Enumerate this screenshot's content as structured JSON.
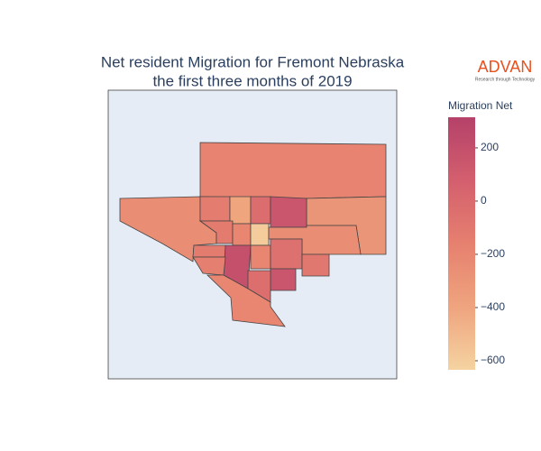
{
  "chart_data": {
    "type": "choropleth",
    "title": [
      "Net resident Migration for Fremont Nebraska",
      "the first three months of 2019"
    ],
    "colorbar_title": "Migration Net",
    "values": [
      -180,
      -250,
      -300,
      -130,
      -400,
      -20,
      150,
      -120,
      -200,
      -600,
      -250,
      -120,
      200,
      -200,
      -50,
      -100,
      -150,
      150,
      -30,
      -200
    ],
    "clim": [
      -634,
      315
    ],
    "cticks": [
      200,
      0,
      {
        "value": -200,
        "label": "−200"
      },
      {
        "value": -400,
        "label": "−400"
      },
      {
        "value": -600,
        "label": "−600"
      }
    ],
    "colorscale": [
      "#f5d3a1",
      "#efa47e",
      "#e6806f",
      "#d35f6e",
      "#b5416a"
    ],
    "background": "#e5ecf6"
  },
  "logo": {
    "text": "ADVAN",
    "tagline": "Research through Technology"
  }
}
